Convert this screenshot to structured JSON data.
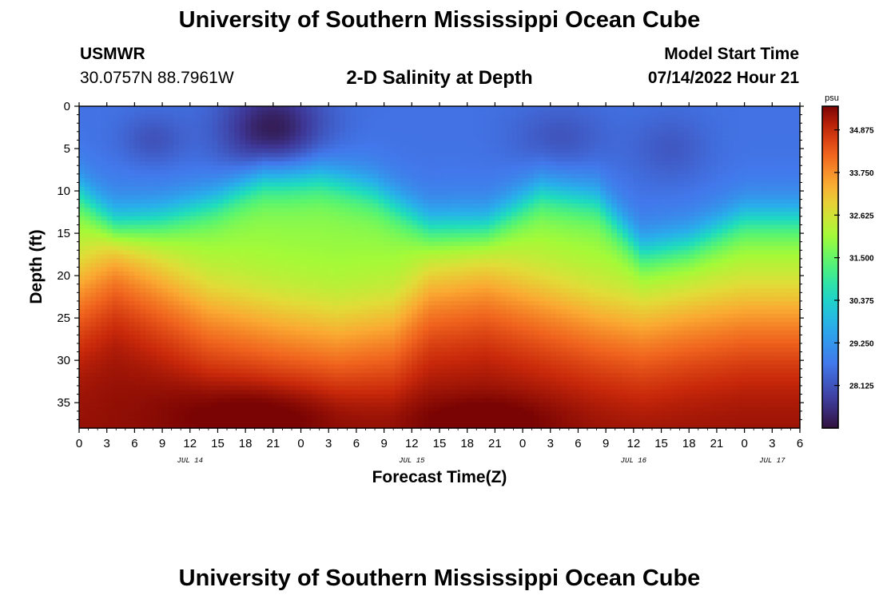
{
  "header": {
    "title": "University of Southern Mississippi Ocean Cube",
    "station": "USMWR",
    "coordinates": "30.0757N  88.7961W",
    "subtitle": "2-D Salinity at Depth",
    "model_start_label": "Model Start Time",
    "model_start_value": "07/14/2022 Hour 21"
  },
  "footer": {
    "title": "University of Southern Mississippi Ocean Cube"
  },
  "chart_data": {
    "type": "heatmap",
    "title": "2-D Salinity at Depth",
    "xlabel": "Forecast Time(Z)",
    "ylabel": "Depth (ft)",
    "x_range_hours": [
      0,
      78
    ],
    "y_range_ft": [
      0,
      38
    ],
    "y_ticks": [
      0,
      5,
      10,
      15,
      20,
      25,
      30,
      35
    ],
    "x_tick_labels": [
      "0",
      "3",
      "6",
      "9",
      "12",
      "15",
      "18",
      "21",
      "0",
      "3",
      "6",
      "9",
      "12",
      "15",
      "18",
      "21",
      "0",
      "3",
      "6",
      "9",
      "12",
      "15",
      "18",
      "21",
      "0",
      "3",
      "6"
    ],
    "date_labels": [
      {
        "label": "JUL 14",
        "hour": 12
      },
      {
        "label": "JUL 15",
        "hour": 36
      },
      {
        "label": "JUL 16",
        "hour": 60
      },
      {
        "label": "JUL 17",
        "hour": 75
      }
    ],
    "colorbar": {
      "unit": "psu",
      "min": 27.0,
      "max": 35.5,
      "tick_values": [
        34.875,
        33.75,
        32.625,
        31.5,
        30.375,
        29.25,
        28.125
      ],
      "tick_labels": [
        "34.875",
        "33.750",
        "32.625",
        "31.500",
        "30.375",
        "29.250",
        "28.125"
      ]
    },
    "halocline_depth_ft": [
      {
        "hour": 0,
        "depth": 10
      },
      {
        "hour": 4,
        "depth": 14
      },
      {
        "hour": 9,
        "depth": 13
      },
      {
        "hour": 15,
        "depth": 11
      },
      {
        "hour": 20,
        "depth": 8
      },
      {
        "hour": 26,
        "depth": 8
      },
      {
        "hour": 32,
        "depth": 10
      },
      {
        "hour": 38,
        "depth": 14
      },
      {
        "hour": 44,
        "depth": 14
      },
      {
        "hour": 50,
        "depth": 10
      },
      {
        "hour": 56,
        "depth": 11
      },
      {
        "hour": 61,
        "depth": 17
      },
      {
        "hour": 66,
        "depth": 16
      },
      {
        "hour": 72,
        "depth": 13
      },
      {
        "hour": 78,
        "depth": 13
      }
    ],
    "deep_front_depth_ft": [
      {
        "hour": 0,
        "depth": 20
      },
      {
        "hour": 4,
        "depth": 17
      },
      {
        "hour": 9,
        "depth": 20
      },
      {
        "hour": 14,
        "depth": 23
      },
      {
        "hour": 22,
        "depth": 25
      },
      {
        "hour": 28,
        "depth": 26
      },
      {
        "hour": 34,
        "depth": 25
      },
      {
        "hour": 38,
        "depth": 21
      },
      {
        "hour": 44,
        "depth": 20
      },
      {
        "hour": 50,
        "depth": 22
      },
      {
        "hour": 56,
        "depth": 24
      },
      {
        "hour": 61,
        "depth": 25
      },
      {
        "hour": 66,
        "depth": 24
      },
      {
        "hour": 72,
        "depth": 23
      },
      {
        "hour": 78,
        "depth": 23
      }
    ],
    "fresh_lens": {
      "center_hour": 21,
      "center_depth_ft": 3,
      "min_psu": 27.2
    },
    "surface_psu": 28.6,
    "bottom_psu": 35.2
  }
}
